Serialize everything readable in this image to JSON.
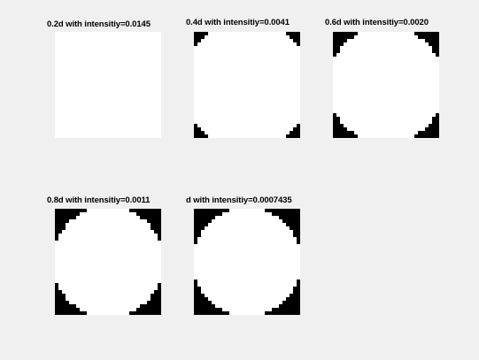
{
  "chart_data": [
    {
      "type": "heatmap",
      "title": "0.2d with intensitiy=0.0145",
      "mask": "circle",
      "radius_fraction": 0.708,
      "grid": 30,
      "colors": {
        "inside": "#ffffff",
        "outside": "#000000"
      }
    },
    {
      "type": "heatmap",
      "title": "0.4d with intensitiy=0.0041",
      "mask": "circle",
      "radius_fraction": 0.6,
      "grid": 30,
      "colors": {
        "inside": "#ffffff",
        "outside": "#000000"
      }
    },
    {
      "type": "heatmap",
      "title": "0.6d with intensitiy=0.0020",
      "mask": "circle",
      "radius_fraction": 0.545,
      "grid": 30,
      "colors": {
        "inside": "#ffffff",
        "outside": "#000000"
      }
    },
    {
      "type": "heatmap",
      "title": "0.8d with intensitiy=0.0011",
      "mask": "circle",
      "radius_fraction": 0.52,
      "grid": 30,
      "colors": {
        "inside": "#ffffff",
        "outside": "#000000"
      }
    },
    {
      "type": "heatmap",
      "title": "d with intensitiy=0.0007435",
      "mask": "circle",
      "radius_fraction": 0.51,
      "grid": 30,
      "colors": {
        "inside": "#ffffff",
        "outside": "#000000"
      }
    }
  ]
}
